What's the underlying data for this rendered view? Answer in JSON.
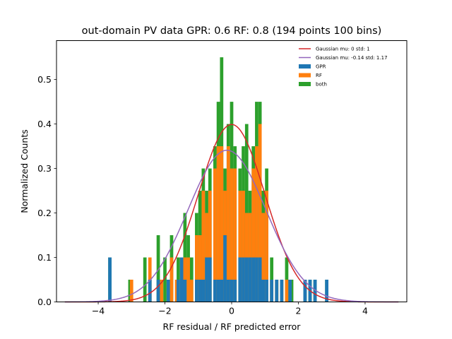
{
  "chart_data": {
    "type": "bar",
    "title": "out-domain PV data GPR: 0.6 RF: 0.8 (194 points 100 bins)",
    "xlabel": "RF residual / RF predicted error",
    "ylabel": "Normalized Counts",
    "xlim": [
      -5.25,
      5.25
    ],
    "ylim": [
      0,
      0.5875
    ],
    "xticks": [
      -4,
      -2,
      0,
      2,
      4
    ],
    "yticks": [
      0.0,
      0.1,
      0.2,
      0.3,
      0.4,
      0.5
    ],
    "xtick_labels": [
      "−4",
      "−2",
      "0",
      "2",
      "4"
    ],
    "ytick_labels": [
      "0.0",
      "0.1",
      "0.2",
      "0.3",
      "0.4",
      "0.5"
    ],
    "grid": false,
    "legend_position": "top-right",
    "bin_width": 0.1,
    "series": [
      {
        "name": "both",
        "color": "#2ca02c",
        "kind": "bars",
        "bars": [
          [
            -3.65,
            0.1
          ],
          [
            -3.05,
            0.05
          ],
          [
            -2.6,
            0.1
          ],
          [
            -2.45,
            0.05
          ],
          [
            -2.2,
            0.15
          ],
          [
            -2.0,
            0.1
          ],
          [
            -1.8,
            0.15
          ],
          [
            -1.6,
            0.1
          ],
          [
            -1.4,
            0.2
          ],
          [
            -1.3,
            0.15
          ],
          [
            -1.2,
            0.1
          ],
          [
            -1.05,
            0.2
          ],
          [
            -0.95,
            0.25
          ],
          [
            -0.85,
            0.3
          ],
          [
            -0.75,
            0.25
          ],
          [
            -0.65,
            0.3
          ],
          [
            -0.5,
            0.35
          ],
          [
            -0.4,
            0.45
          ],
          [
            -0.3,
            0.55
          ],
          [
            -0.2,
            0.3
          ],
          [
            -0.1,
            0.4
          ],
          [
            0.0,
            0.45
          ],
          [
            0.1,
            0.35
          ],
          [
            0.25,
            0.3
          ],
          [
            0.35,
            0.35
          ],
          [
            0.45,
            0.4
          ],
          [
            0.55,
            0.25
          ],
          [
            0.65,
            0.35
          ],
          [
            0.75,
            0.45
          ],
          [
            0.85,
            0.45
          ],
          [
            0.95,
            0.25
          ],
          [
            1.05,
            0.3
          ],
          [
            1.2,
            0.1
          ],
          [
            1.35,
            0.05
          ],
          [
            1.5,
            0.05
          ],
          [
            1.65,
            0.1
          ],
          [
            1.75,
            0.05
          ],
          [
            1.8,
            0.05
          ],
          [
            2.2,
            0.05
          ],
          [
            2.35,
            0.05
          ],
          [
            2.5,
            0.05
          ],
          [
            2.85,
            0.05
          ]
        ]
      },
      {
        "name": "RF",
        "color": "#ff7f0e",
        "kind": "bars",
        "bars": [
          [
            -3.0,
            0.05
          ],
          [
            -2.45,
            0.1
          ],
          [
            -2.1,
            0.05
          ],
          [
            -1.8,
            0.1
          ],
          [
            -1.65,
            0.05
          ],
          [
            -1.4,
            0.1
          ],
          [
            -1.3,
            0.1
          ],
          [
            -1.2,
            0.05
          ],
          [
            -1.05,
            0.15
          ],
          [
            -0.95,
            0.15
          ],
          [
            -0.85,
            0.25
          ],
          [
            -0.75,
            0.2
          ],
          [
            -0.65,
            0.25
          ],
          [
            -0.5,
            0.3
          ],
          [
            -0.4,
            0.35
          ],
          [
            -0.3,
            0.35
          ],
          [
            -0.2,
            0.25
          ],
          [
            -0.1,
            0.35
          ],
          [
            0.0,
            0.3
          ],
          [
            0.1,
            0.3
          ],
          [
            0.25,
            0.25
          ],
          [
            0.35,
            0.25
          ],
          [
            0.45,
            0.2
          ],
          [
            0.55,
            0.2
          ],
          [
            0.65,
            0.3
          ],
          [
            0.75,
            0.35
          ],
          [
            0.85,
            0.4
          ],
          [
            0.95,
            0.2
          ],
          [
            1.05,
            0.25
          ],
          [
            1.2,
            0.05
          ],
          [
            1.35,
            0.05
          ],
          [
            1.5,
            0.05
          ],
          [
            1.65,
            0.05
          ]
        ]
      },
      {
        "name": "GPR",
        "color": "#1f77b4",
        "kind": "bars",
        "bars": [
          [
            -3.65,
            0.1
          ],
          [
            -2.45,
            0.05
          ],
          [
            -2.2,
            0.05
          ],
          [
            -1.9,
            0.05
          ],
          [
            -1.6,
            0.05
          ],
          [
            -1.5,
            0.1
          ],
          [
            -1.4,
            0.05
          ],
          [
            -1.05,
            0.05
          ],
          [
            -0.95,
            0.05
          ],
          [
            -0.85,
            0.05
          ],
          [
            -0.75,
            0.1
          ],
          [
            -0.65,
            0.1
          ],
          [
            -0.5,
            0.05
          ],
          [
            -0.4,
            0.05
          ],
          [
            -0.3,
            0.05
          ],
          [
            -0.2,
            0.15
          ],
          [
            -0.1,
            0.05
          ],
          [
            0.0,
            0.05
          ],
          [
            0.1,
            0.05
          ],
          [
            0.25,
            0.1
          ],
          [
            0.35,
            0.1
          ],
          [
            0.45,
            0.1
          ],
          [
            0.55,
            0.1
          ],
          [
            0.65,
            0.1
          ],
          [
            0.75,
            0.1
          ],
          [
            0.85,
            0.1
          ],
          [
            0.95,
            0.05
          ],
          [
            1.05,
            0.05
          ],
          [
            1.2,
            0.05
          ],
          [
            1.35,
            0.05
          ],
          [
            1.5,
            0.05
          ],
          [
            1.75,
            0.05
          ],
          [
            2.2,
            0.05
          ],
          [
            2.35,
            0.05
          ],
          [
            2.5,
            0.05
          ],
          [
            2.85,
            0.05
          ]
        ]
      },
      {
        "name": "Gaussian mu: 0 std: 1",
        "color": "#d62728",
        "kind": "gaussian",
        "mu": 0,
        "std": 1,
        "range": [
          -5,
          5
        ]
      },
      {
        "name": "Gaussian mu: -0.14 std: 1.17",
        "color": "#9467bd",
        "kind": "gaussian",
        "mu": -0.14,
        "std": 1.17,
        "range": [
          -5,
          5
        ]
      }
    ],
    "legend_order": [
      "Gaussian mu: 0 std: 1",
      "Gaussian mu: -0.14 std: 1.17",
      "GPR",
      "RF",
      "both"
    ]
  }
}
